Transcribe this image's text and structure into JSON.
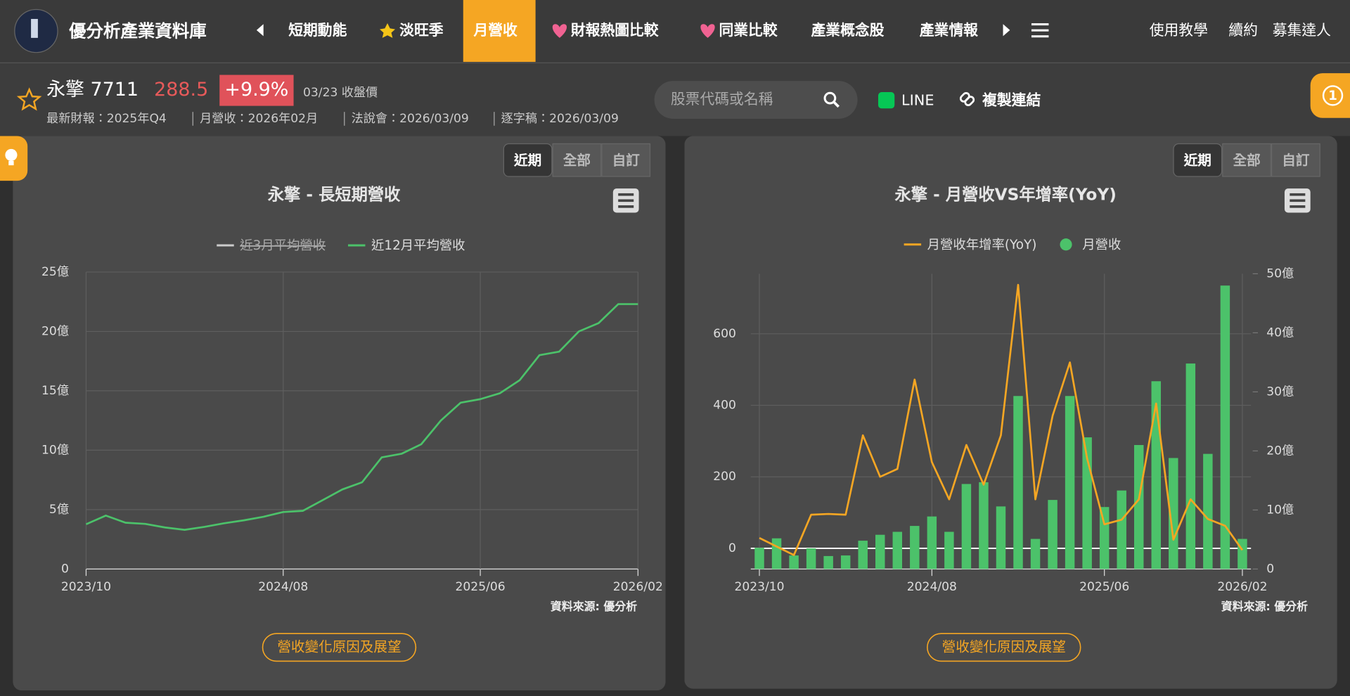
{
  "nav": {
    "brand": "優分析產業資料庫",
    "items": [
      {
        "label": "短期動能"
      },
      {
        "label": "淡旺季",
        "icon": "star"
      },
      {
        "label": "月營收",
        "active": true
      },
      {
        "label": "財報熱圖比較",
        "icon": "heart"
      },
      {
        "label": "同業比較",
        "icon": "heart"
      },
      {
        "label": "產業概念股"
      },
      {
        "label": "產業情報"
      }
    ],
    "links": [
      "使用教學",
      "續約",
      "募集達人"
    ]
  },
  "stock": {
    "name": "永擎 7711",
    "price": "288.5",
    "change": "+9.9%",
    "date_note": "03/23 收盤價",
    "info": [
      "最新財報：2025年Q4",
      "月營收：2026年02月",
      "法說會：2026/03/09",
      "逐字稿：2026/03/09"
    ]
  },
  "toolbar": {
    "search_placeholder": "股票代碼或名稱",
    "line": "LINE",
    "copy_link": "複製連結"
  },
  "badge": "1",
  "chart_data": [
    {
      "type": "line",
      "title": "永擎 - 長短期營收",
      "range_buttons": [
        "近期",
        "全部",
        "自訂"
      ],
      "active_range": "近期",
      "categories": [
        "2023/10",
        null,
        null,
        null,
        null,
        null,
        null,
        null,
        null,
        null,
        "2024/08",
        null,
        null,
        null,
        null,
        null,
        null,
        null,
        null,
        null,
        "2025/06",
        null,
        null,
        null,
        null,
        null,
        null,
        null,
        "2026/02"
      ],
      "series": [
        {
          "name": "近3月平均營收",
          "color": "#ffffff",
          "hidden": true
        },
        {
          "name": "近12月平均營收",
          "color": "#4cc26a",
          "values": [
            3.77,
            4.5,
            3.9,
            3.8,
            3.5,
            3.3,
            3.55,
            3.85,
            4.1,
            4.4,
            4.8,
            4.9,
            5.8,
            6.7,
            7.3,
            9.4,
            9.7,
            10.5,
            12.5,
            14.0,
            14.3,
            14.8,
            15.9,
            18.0,
            18.3,
            20.0,
            20.7,
            22.3,
            22.3
          ]
        }
      ],
      "ylim": [
        0,
        25
      ],
      "yticks": [
        0,
        {
          "value": 5,
          "label": "5億"
        },
        {
          "value": 10,
          "label": "10億"
        },
        {
          "value": 15,
          "label": "15億"
        },
        {
          "value": 20,
          "label": "20億"
        },
        {
          "value": 25,
          "label": "25億"
        }
      ],
      "grid": true,
      "source": "資料來源: 優分析",
      "button": "營收變化原因及展望"
    },
    {
      "type": "combo",
      "title": "永擎 - 月營收VS年增率(YoY)",
      "range_buttons": [
        "近期",
        "全部",
        "自訂"
      ],
      "active_range": "近期",
      "categories": [
        "2023/10",
        null,
        null,
        null,
        null,
        null,
        null,
        null,
        null,
        null,
        "2024/08",
        null,
        null,
        null,
        null,
        null,
        null,
        null,
        null,
        null,
        "2025/06",
        null,
        null,
        null,
        null,
        null,
        null,
        null,
        "2026/02"
      ],
      "series": [
        {
          "name": "月營收年增率(YoY)",
          "type": "line",
          "color": "#f5a623",
          "values": [
            29,
            5,
            -19,
            94,
            96,
            94,
            316,
            200,
            222,
            472,
            241,
            137,
            289,
            178,
            316,
            737,
            137,
            371,
            520,
            251,
            67,
            80,
            137,
            405,
            24,
            137,
            82,
            63,
            -5
          ]
        },
        {
          "name": "月營收",
          "type": "bar",
          "color": "#4cc26a",
          "axis": "y2",
          "values": [
            3.6,
            5.2,
            2.3,
            3.5,
            2.2,
            2.3,
            4.8,
            5.8,
            6.3,
            7.3,
            8.9,
            6.3,
            14.4,
            14.7,
            10.6,
            29.3,
            5.1,
            11.7,
            29.3,
            22.3,
            10.5,
            13.3,
            21.0,
            31.8,
            18.8,
            34.8,
            19.5,
            48.0,
            5.1
          ]
        }
      ],
      "ylim": [
        -58,
        768
      ],
      "yticks": [
        0,
        200,
        400,
        600
      ],
      "y2lim": [
        0,
        50
      ],
      "y2ticks": [
        0,
        {
          "value": 10,
          "label": "10億"
        },
        {
          "value": 20,
          "label": "20億"
        },
        {
          "value": 30,
          "label": "30億"
        },
        {
          "value": 40,
          "label": "40億"
        },
        {
          "value": 50,
          "label": "50億"
        }
      ],
      "grid": true,
      "source": "資料來源: 優分析",
      "button": "營收變化原因及展望"
    }
  ]
}
